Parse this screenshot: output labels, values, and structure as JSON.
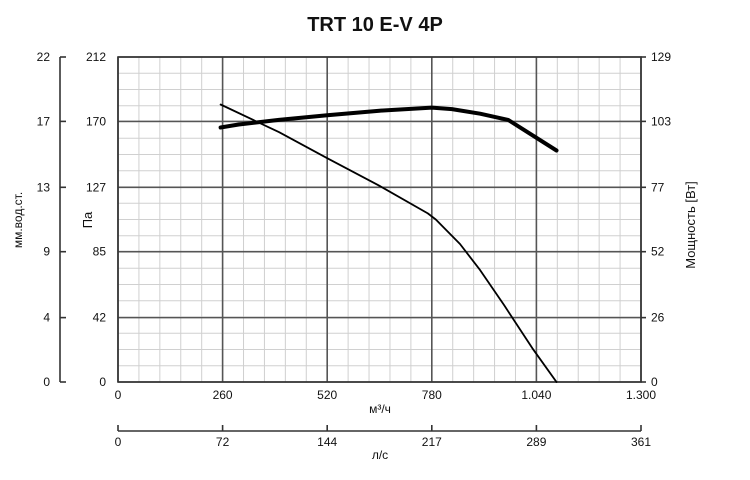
{
  "chart_data": {
    "type": "line",
    "title": "TRT 10 E-V 4P",
    "xlabel": "м³/ч",
    "xlabel_bottom": "л/с",
    "ylabel_left_outer": "мм.вод.ст.",
    "ylabel_left_inner": "Па",
    "ylabel_right": "Мощность [Вт]",
    "xlim": [
      0,
      1300
    ],
    "ylim": [
      0,
      212
    ],
    "x_ticks": [
      "0",
      "260",
      "520",
      "780",
      "1.040",
      "1.300"
    ],
    "x_tick_values": [
      0,
      260,
      520,
      780,
      1040,
      1300
    ],
    "x2_ticks": [
      "0",
      "72",
      "144",
      "217",
      "289",
      "361"
    ],
    "y_pa_ticks": [
      "0",
      "42",
      "85",
      "127",
      "170",
      "212"
    ],
    "y_pa_values": [
      0,
      42,
      85,
      127,
      170,
      212
    ],
    "y_mm_ticks": [
      "0",
      "4",
      "9",
      "13",
      "17",
      "22"
    ],
    "y_power_ticks": [
      "0",
      "26",
      "52",
      "77",
      "103",
      "129"
    ],
    "grid": true,
    "series": [
      {
        "role": "pressure",
        "color": "#000000",
        "x": [
          255,
          400,
          520,
          650,
          770,
          790,
          850,
          900,
          960,
          1030,
          1090
        ],
        "y": [
          181,
          163,
          146,
          128,
          110,
          106,
          90,
          73,
          50,
          22,
          0
        ]
      },
      {
        "role": "power",
        "color": "#000000",
        "x": [
          255,
          300,
          400,
          520,
          650,
          780,
          830,
          900,
          970,
          1090
        ],
        "y": [
          166,
          168,
          171,
          174,
          177,
          179,
          178,
          175,
          171,
          151
        ]
      }
    ]
  }
}
